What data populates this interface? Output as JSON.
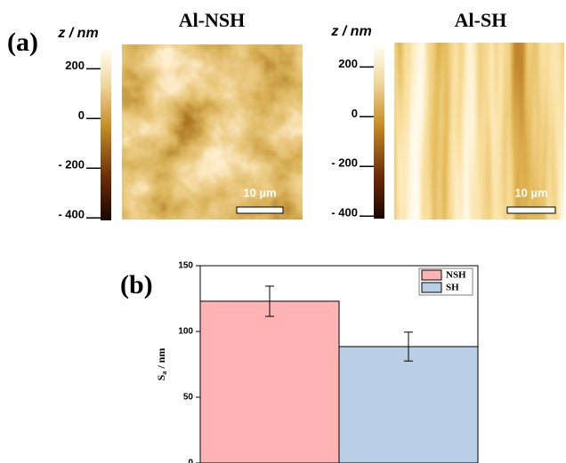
{
  "panel_a": {
    "label": "(a)",
    "images": [
      {
        "title": "Al-NSH",
        "z_label": "z / nm",
        "clim": [
          -410,
          280
        ],
        "cticks": [
          200,
          0,
          {
            "value": -200,
            "label": "- 200"
          },
          {
            "value": -400,
            "label": "- 400"
          }
        ],
        "scale_bar": "10 µm"
      },
      {
        "title": "Al-SH",
        "z_label": "z / nm",
        "clim": [
          -410,
          280
        ],
        "cticks": [
          200,
          0,
          {
            "value": -200,
            "label": "- 200"
          },
          {
            "value": -400,
            "label": "- 400"
          }
        ],
        "scale_bar": "10 µm"
      }
    ]
  },
  "chart_data": {
    "type": "bar",
    "panel_label": "(b)",
    "ylabel": "S",
    "ylabel_sub": "a",
    "ylabel_unit": " / nm",
    "categories": [
      "NSH",
      "SH"
    ],
    "values": [
      123,
      88.5
    ],
    "errors": [
      11.5,
      11
    ],
    "colors": [
      "#ffb3b3",
      "#b8cfe6"
    ],
    "ylim": [
      0,
      150
    ],
    "yticks": [
      0,
      50,
      100,
      150
    ],
    "legend": "top-right"
  }
}
